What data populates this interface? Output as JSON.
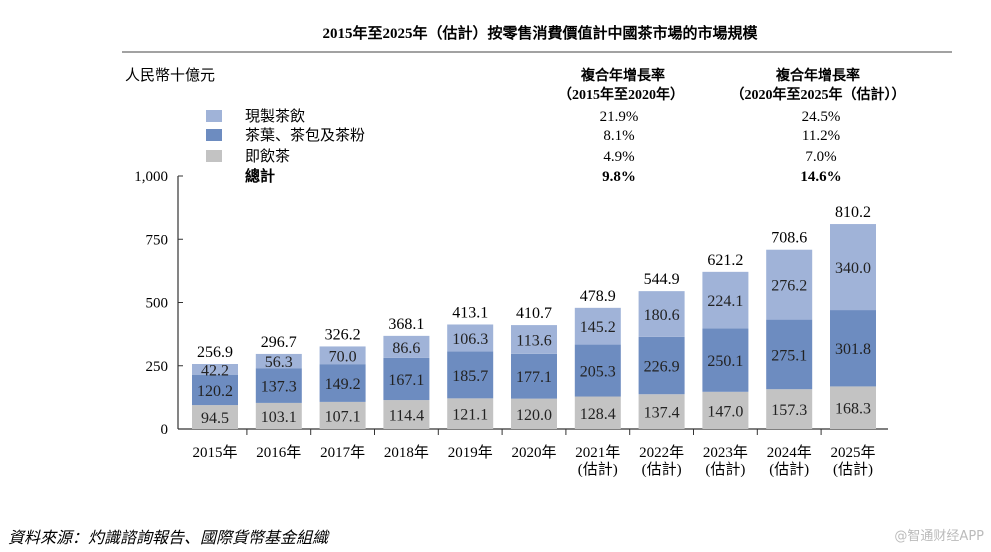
{
  "chart_data": {
    "type": "bar",
    "stacked": true,
    "title": "2015年至2025年（估計）按零售消費價值計中國茶市場的市場規模",
    "ylabel": "人民幣十億元",
    "ylim": [
      0,
      1000
    ],
    "yticks": [
      "0",
      "250",
      "500",
      "750",
      "1,000"
    ],
    "ytick_values": [
      0,
      250,
      500,
      750,
      1000
    ],
    "categories": [
      [
        "2015年"
      ],
      [
        "2016年"
      ],
      [
        "2017年"
      ],
      [
        "2018年"
      ],
      [
        "2019年"
      ],
      [
        "2020年"
      ],
      [
        "2021年",
        "(估計)"
      ],
      [
        "2022年",
        "(估計)"
      ],
      [
        "2023年",
        "(估計)"
      ],
      [
        "2024年",
        "(估計)"
      ],
      [
        "2025年",
        "(估計)"
      ]
    ],
    "series": [
      {
        "name": "即飲茶",
        "color": "#c3c3c3",
        "values": [
          94.5,
          103.1,
          107.1,
          114.4,
          121.1,
          120.0,
          128.4,
          137.4,
          147.0,
          157.3,
          168.3
        ],
        "labels": [
          "94.5",
          "103.1",
          "107.1",
          "114.4",
          "121.1",
          "120.0",
          "128.4",
          "137.4",
          "147.0",
          "157.3",
          "168.3"
        ]
      },
      {
        "name": "茶葉、茶包及茶粉",
        "color": "#6d8cc0",
        "values": [
          120.2,
          137.3,
          149.2,
          167.1,
          185.7,
          177.1,
          205.3,
          226.9,
          250.1,
          275.1,
          301.8
        ],
        "labels": [
          "120.2",
          "137.3",
          "149.2",
          "167.1",
          "185.7",
          "177.1",
          "205.3",
          "226.9",
          "250.1",
          "275.1",
          "301.8"
        ]
      },
      {
        "name": "現製茶飲",
        "color": "#a0b3d8",
        "values": [
          42.2,
          56.3,
          70.0,
          86.6,
          106.3,
          113.6,
          145.2,
          180.6,
          224.1,
          276.2,
          340.0
        ],
        "labels": [
          "42.2",
          "56.3",
          "70.0",
          "86.6",
          "106.3",
          "113.6",
          "145.2",
          "180.6",
          "224.1",
          "276.2",
          "340.0"
        ]
      }
    ],
    "totals": [
      "256.9",
      "296.7",
      "326.2",
      "368.1",
      "413.1",
      "410.7",
      "478.9",
      "544.9",
      "621.2",
      "708.6",
      "810.2"
    ],
    "legend": {
      "placement": "top-left",
      "cagr_headers": [
        {
          "line1": "複合年增長率",
          "line2": "（2015年至2020年）"
        },
        {
          "line1": "複合年增長率",
          "line2": "（2020年至2025年（估計））"
        }
      ],
      "rows": [
        {
          "label": "現製茶飲",
          "color": "#a0b3d8",
          "cagr1": "21.9%",
          "cagr2": "24.5%"
        },
        {
          "label": "茶葉、茶包及茶粉",
          "color": "#6d8cc0",
          "cagr1": "8.1%",
          "cagr2": "11.2%"
        },
        {
          "label": "即飲茶",
          "color": "#c3c3c3",
          "cagr1": "4.9%",
          "cagr2": "7.0%"
        },
        {
          "label": "總計",
          "cagr1": "9.8%",
          "cagr2": "14.6%",
          "bold": true
        }
      ]
    },
    "grid": false
  },
  "source": "資料來源：灼識諮詢報告、國際貨幣基金組織",
  "watermark": "@智通财经APP"
}
